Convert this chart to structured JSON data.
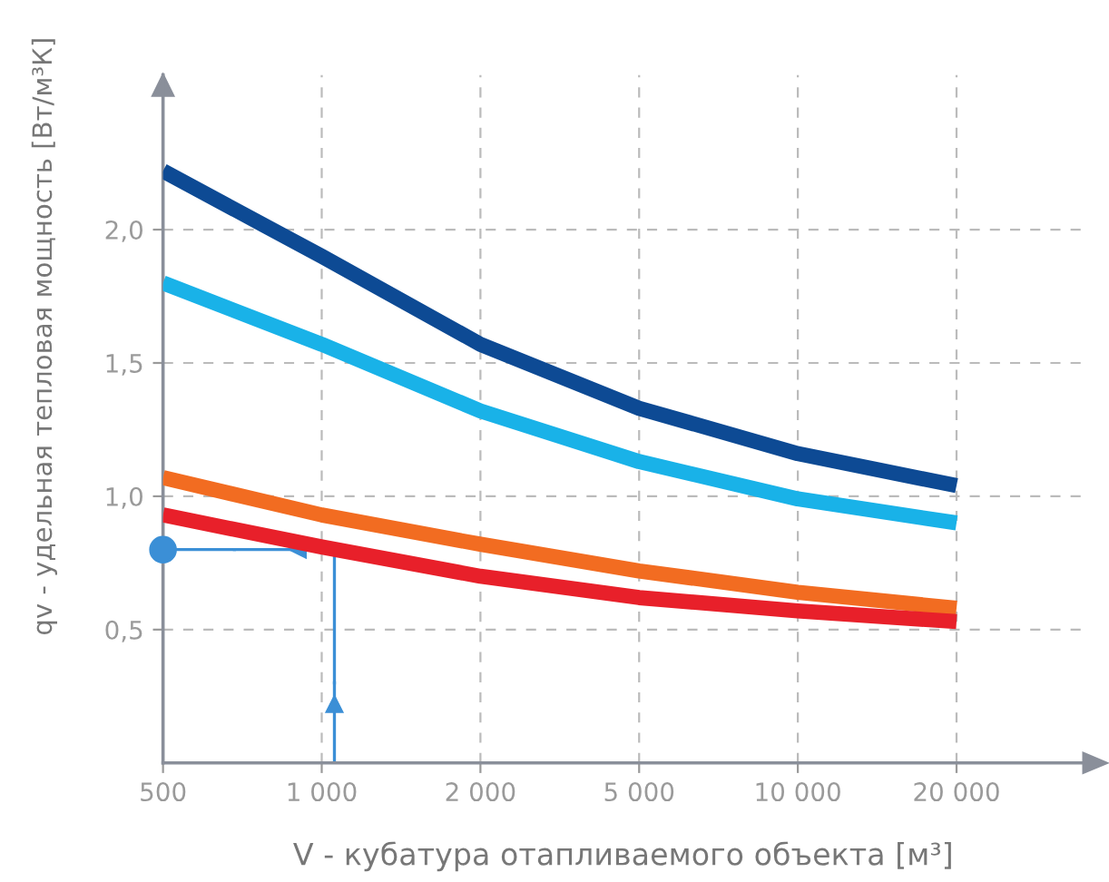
{
  "chart_data": {
    "type": "line",
    "xlabel": "V - кубатура отапливаемого объекта [м³]",
    "ylabel": "qv - удельная тепловая мощность [Вт/м³К]",
    "categories": [
      "500",
      "1 000",
      "2 000",
      "5 000",
      "10 000",
      "20 000"
    ],
    "series": [
      {
        "color": "#0d4a94",
        "values": [
          2.22,
          1.9,
          1.57,
          1.33,
          1.16,
          1.04
        ]
      },
      {
        "color": "#19b2e8",
        "values": [
          1.8,
          1.57,
          1.32,
          1.13,
          0.99,
          0.9
        ]
      },
      {
        "color": "#f26c21",
        "values": [
          1.07,
          0.93,
          0.82,
          0.72,
          0.64,
          0.58
        ]
      },
      {
        "color": "#e8202a",
        "values": [
          0.93,
          0.81,
          0.7,
          0.62,
          0.57,
          0.53
        ]
      }
    ],
    "ylim": [
      0,
      2.58
    ],
    "yticks": [
      {
        "value": 0.5,
        "label": "0,5"
      },
      {
        "value": 1.0,
        "label": "1,0"
      },
      {
        "value": 1.5,
        "label": "1,5"
      },
      {
        "value": 2.0,
        "label": "2,0"
      }
    ],
    "grid": true,
    "line_style": "solid",
    "marker": "none"
  }
}
